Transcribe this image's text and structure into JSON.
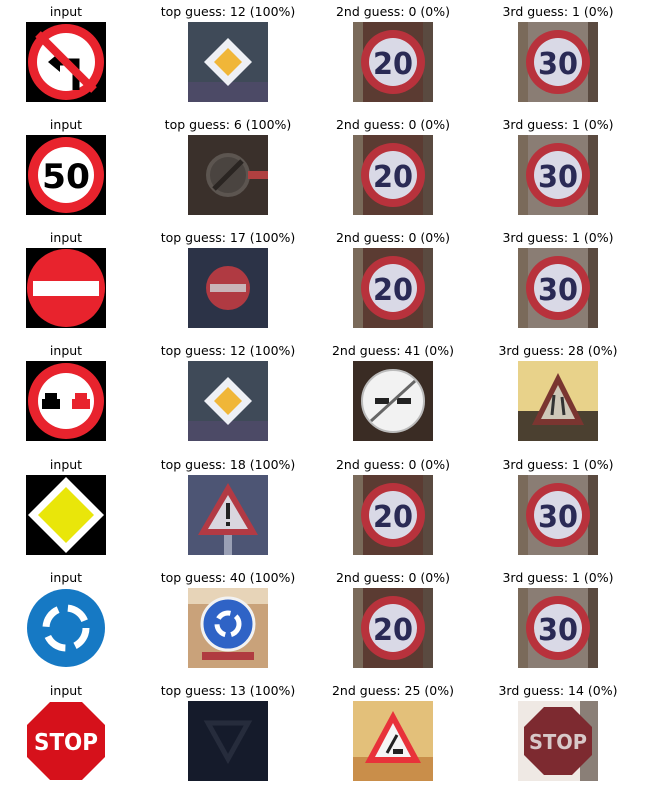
{
  "rows": [
    {
      "input": {
        "caption": "input",
        "icon": "no-left-turn-sign-icon"
      },
      "guesses": [
        {
          "caption": "top guess: 12 (100%)",
          "icon": "priority-road-photo-icon"
        },
        {
          "caption": "2nd guess: 0 (0%)",
          "icon": "speed-limit-20-photo-icon"
        },
        {
          "caption": "3rd guess: 1 (0%)",
          "icon": "speed-limit-30-photo-icon"
        }
      ]
    },
    {
      "input": {
        "caption": "input",
        "icon": "speed-limit-50-sign-icon"
      },
      "guesses": [
        {
          "caption": "top guess: 6 (100%)",
          "icon": "end-of-speed-limit-photo-icon"
        },
        {
          "caption": "2nd guess: 0 (0%)",
          "icon": "speed-limit-20-photo-icon"
        },
        {
          "caption": "3rd guess: 1 (0%)",
          "icon": "speed-limit-30-photo-icon"
        }
      ]
    },
    {
      "input": {
        "caption": "input",
        "icon": "no-entry-sign-icon"
      },
      "guesses": [
        {
          "caption": "top guess: 17 (100%)",
          "icon": "no-entry-photo-icon"
        },
        {
          "caption": "2nd guess: 0 (0%)",
          "icon": "speed-limit-20-photo-icon"
        },
        {
          "caption": "3rd guess: 1 (0%)",
          "icon": "speed-limit-30-photo-icon"
        }
      ]
    },
    {
      "input": {
        "caption": "input",
        "icon": "no-overtaking-sign-icon"
      },
      "guesses": [
        {
          "caption": "top guess: 12 (100%)",
          "icon": "priority-road-photo-icon"
        },
        {
          "caption": "2nd guess: 41 (0%)",
          "icon": "end-of-no-passing-photo-icon"
        },
        {
          "caption": "3rd guess: 28 (0%)",
          "icon": "children-crossing-photo-icon"
        }
      ]
    },
    {
      "input": {
        "caption": "input",
        "icon": "priority-road-sign-icon"
      },
      "guesses": [
        {
          "caption": "top guess: 18 (100%)",
          "icon": "general-caution-photo-icon"
        },
        {
          "caption": "2nd guess: 0 (0%)",
          "icon": "speed-limit-20-photo-icon"
        },
        {
          "caption": "3rd guess: 1 (0%)",
          "icon": "speed-limit-30-photo-icon"
        }
      ]
    },
    {
      "input": {
        "caption": "input",
        "icon": "roundabout-sign-icon"
      },
      "guesses": [
        {
          "caption": "top guess: 40 (100%)",
          "icon": "roundabout-photo-icon"
        },
        {
          "caption": "2nd guess: 0 (0%)",
          "icon": "speed-limit-20-photo-icon"
        },
        {
          "caption": "3rd guess: 1 (0%)",
          "icon": "speed-limit-30-photo-icon"
        }
      ]
    },
    {
      "input": {
        "caption": "input",
        "icon": "stop-sign-icon"
      },
      "guesses": [
        {
          "caption": "top guess: 13 (100%)",
          "icon": "yield-photo-icon"
        },
        {
          "caption": "2nd guess: 25 (0%)",
          "icon": "road-work-photo-icon"
        },
        {
          "caption": "3rd guess: 14 (0%)",
          "icon": "stop-photo-icon"
        }
      ]
    }
  ],
  "sign_text": {
    "speed_50": "50",
    "speed_20": "20",
    "speed_30": "30",
    "stop": "STOP"
  },
  "colors": {
    "sign_red": "#e8232d",
    "sign_blue": "#1679c4",
    "sign_yellow": "#e9e60a",
    "photo_gold": "#f0b638"
  }
}
